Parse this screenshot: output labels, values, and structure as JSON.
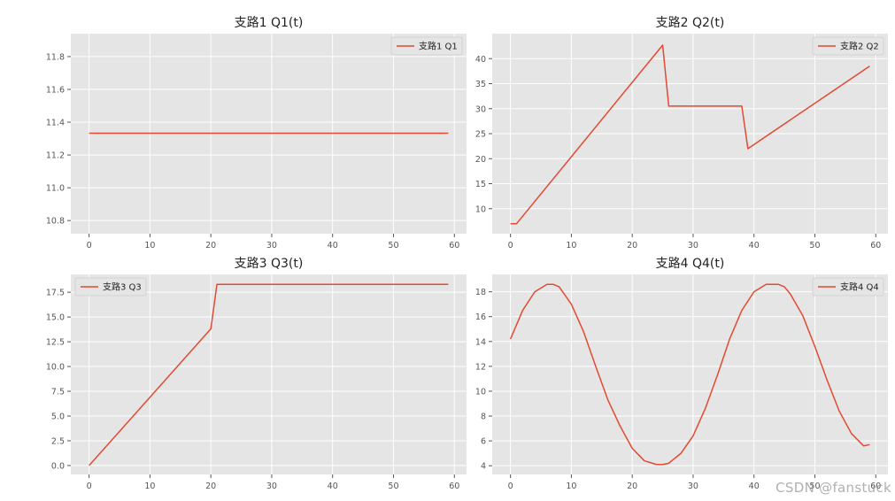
{
  "watermark": "CSDN @fanstuck",
  "colors": {
    "line": "#E24A33",
    "panel_bg": "#E5E5E5",
    "grid": "#FFFFFF"
  },
  "chart_data": [
    {
      "type": "line",
      "title": "支路1 Q1(t)",
      "xlabel": "",
      "ylabel": "",
      "xlim": [
        -3,
        62
      ],
      "ylim": [
        10.72,
        11.94
      ],
      "xticks": [
        0,
        10,
        20,
        30,
        40,
        50,
        60
      ],
      "yticks": [
        10.8,
        11.0,
        11.2,
        11.4,
        11.6,
        11.8
      ],
      "grid": true,
      "legend_position": "upper-right",
      "series": [
        {
          "name": "支路1 Q1",
          "x": [
            0,
            59
          ],
          "y": [
            11.333,
            11.333
          ]
        }
      ]
    },
    {
      "type": "line",
      "title": "支路2 Q2(t)",
      "xlabel": "",
      "ylabel": "",
      "xlim": [
        -3,
        62
      ],
      "ylim": [
        5.0,
        45.0
      ],
      "xticks": [
        0,
        10,
        20,
        30,
        40,
        50,
        60
      ],
      "yticks": [
        10,
        15,
        20,
        25,
        30,
        35,
        40
      ],
      "grid": true,
      "legend_position": "upper-right",
      "series": [
        {
          "name": "支路2 Q2",
          "x": [
            0,
            1,
            25,
            26,
            38,
            39,
            59
          ],
          "y": [
            7.0,
            7.0,
            42.7,
            30.5,
            30.5,
            22.0,
            38.5
          ]
        }
      ]
    },
    {
      "type": "line",
      "title": "支路3 Q3(t)",
      "xlabel": "",
      "ylabel": "",
      "xlim": [
        -3,
        62
      ],
      "ylim": [
        -0.9,
        19.3
      ],
      "xticks": [
        0,
        10,
        20,
        30,
        40,
        50,
        60
      ],
      "yticks": [
        0.0,
        2.5,
        5.0,
        7.5,
        10.0,
        12.5,
        15.0,
        17.5
      ],
      "grid": true,
      "legend_position": "upper-left",
      "series": [
        {
          "name": "支路3 Q3",
          "x": [
            0,
            20,
            21,
            59
          ],
          "y": [
            0.0,
            13.8,
            18.3,
            18.3
          ]
        }
      ]
    },
    {
      "type": "line",
      "title": "支路4 Q4(t)",
      "xlabel": "",
      "ylabel": "",
      "xlim": [
        -3,
        62
      ],
      "ylim": [
        3.3,
        19.4
      ],
      "xticks": [
        0,
        10,
        20,
        30,
        40,
        50,
        60
      ],
      "yticks": [
        4,
        6,
        8,
        10,
        12,
        14,
        16,
        18
      ],
      "grid": true,
      "legend_position": "upper-right",
      "series": [
        {
          "name": "支路4 Q4",
          "x": [
            0,
            2,
            4,
            6,
            7,
            8,
            10,
            12,
            14,
            16,
            18,
            20,
            22,
            24,
            25,
            26,
            28,
            30,
            32,
            34,
            36,
            38,
            40,
            42,
            44,
            45,
            46,
            48,
            50,
            52,
            54,
            56,
            58,
            59
          ],
          "y": [
            14.2,
            16.5,
            18.0,
            18.6,
            18.6,
            18.4,
            17.0,
            14.8,
            12.0,
            9.3,
            7.2,
            5.4,
            4.4,
            4.1,
            4.1,
            4.2,
            5.0,
            6.4,
            8.6,
            11.3,
            14.2,
            16.5,
            18.0,
            18.6,
            18.6,
            18.4,
            17.8,
            16.1,
            13.6,
            10.9,
            8.4,
            6.6,
            5.6,
            5.7
          ]
        }
      ]
    }
  ]
}
